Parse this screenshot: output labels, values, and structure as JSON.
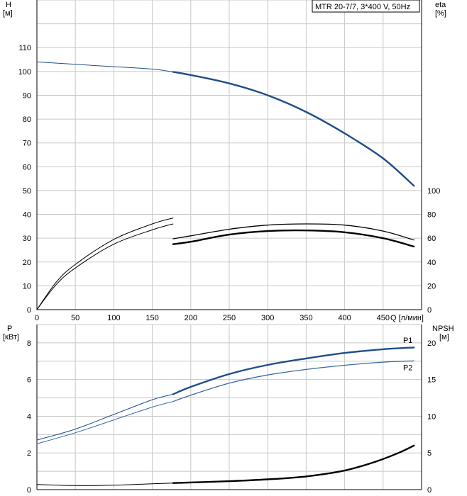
{
  "legend_text": "MTR 20-7/7, 3*400 V, 50Hz",
  "colors": {
    "blue": "#1f4e86",
    "blue_light": "#3a6aa8",
    "black": "#000000",
    "grid": "#c8c8c8"
  },
  "chart_data": [
    {
      "type": "line",
      "axes": {
        "x": {
          "label": "Q [л/мин]",
          "range": [
            0,
            500
          ],
          "ticks": [
            "0",
            "50",
            "100",
            "150",
            "200",
            "250",
            "300",
            "350",
            "400",
            "450"
          ]
        },
        "y_left": {
          "label_line1": "H",
          "label_line2": "[м]",
          "range": [
            0,
            130
          ],
          "ticks": [
            "0",
            "10",
            "20",
            "30",
            "40",
            "50",
            "60",
            "70",
            "80",
            "90",
            "100",
            "110"
          ]
        },
        "y_right": {
          "label_line1": "eta",
          "label_line2": "[%]",
          "range": [
            0,
            130
          ],
          "ticks": [
            "0",
            "20",
            "40",
            "60",
            "80",
            "100"
          ],
          "value_scale": 0.5
        }
      },
      "grid": true,
      "series": [
        {
          "axis": "left",
          "color": "#1f4e86",
          "width": 1,
          "x": [
            0,
            50,
            100,
            150,
            177
          ],
          "y": [
            104,
            103,
            102,
            101,
            99.8
          ]
        },
        {
          "axis": "left",
          "color": "#1f4e86",
          "width": 2.4,
          "x": [
            177,
            200,
            250,
            300,
            350,
            400,
            450,
            490
          ],
          "y": [
            99.8,
            98.5,
            95,
            90,
            83,
            74,
            63.5,
            52
          ]
        },
        {
          "axis": "right",
          "color": "#000000",
          "width": 1,
          "x": [
            0,
            25,
            50,
            100,
            150,
            177
          ],
          "y": [
            0,
            23,
            38,
            59,
            72,
            77
          ]
        },
        {
          "axis": "right",
          "color": "#000000",
          "width": 1,
          "x": [
            0,
            25,
            50,
            100,
            150,
            177
          ],
          "y": [
            0,
            21,
            35,
            55,
            67,
            72
          ]
        },
        {
          "axis": "right",
          "color": "#000000",
          "width": 1.3,
          "x": [
            177,
            200,
            250,
            300,
            350,
            400,
            450,
            490
          ],
          "y": [
            59.5,
            62,
            67.5,
            71,
            72,
            71,
            66,
            58.5
          ]
        },
        {
          "axis": "right",
          "color": "#000000",
          "width": 2.4,
          "x": [
            177,
            200,
            250,
            300,
            350,
            400,
            450,
            490
          ],
          "y": [
            55,
            57,
            63,
            66,
            66.5,
            65,
            60,
            53
          ]
        }
      ]
    },
    {
      "type": "line",
      "axes": {
        "x": {
          "range": [
            0,
            500
          ]
        },
        "y_left": {
          "label_line1": "P",
          "label_line2": "[кВт]",
          "range": [
            0,
            9
          ],
          "ticks": [
            "0",
            "2",
            "4",
            "6",
            "8"
          ]
        },
        "y_right": {
          "label_line1": "NPSH",
          "label_line2": "[м]",
          "range": [
            0,
            22.5
          ],
          "ticks": [
            "0",
            "5",
            "10",
            "15",
            "20"
          ]
        }
      },
      "grid": true,
      "series": [
        {
          "name": "P1",
          "axis": "left",
          "color": "#1f4e86",
          "width": 1,
          "x": [
            0,
            50,
            100,
            150,
            177
          ],
          "y": [
            2.7,
            3.3,
            4.1,
            4.9,
            5.2
          ]
        },
        {
          "name": "P1",
          "axis": "left",
          "color": "#1f4e86",
          "width": 2.4,
          "x": [
            177,
            200,
            250,
            300,
            350,
            400,
            450,
            490
          ],
          "y": [
            5.2,
            5.6,
            6.3,
            6.8,
            7.15,
            7.45,
            7.65,
            7.75
          ]
        },
        {
          "name": "P2",
          "axis": "left",
          "color": "#3a6aa8",
          "width": 1,
          "x": [
            0,
            50,
            100,
            150,
            177
          ],
          "y": [
            2.5,
            3.1,
            3.8,
            4.5,
            4.8
          ]
        },
        {
          "name": "P2",
          "axis": "left",
          "color": "#3a6aa8",
          "width": 1.3,
          "x": [
            177,
            200,
            250,
            300,
            350,
            400,
            450,
            490
          ],
          "y": [
            4.8,
            5.15,
            5.8,
            6.25,
            6.55,
            6.78,
            6.95,
            7.02
          ]
        },
        {
          "axis": "right",
          "color": "#000000",
          "width": 1,
          "x": [
            0,
            50,
            100,
            150,
            177
          ],
          "y": [
            0.7,
            0.55,
            0.6,
            0.8,
            0.9
          ]
        },
        {
          "axis": "right",
          "color": "#000000",
          "width": 2.4,
          "x": [
            177,
            250,
            300,
            350,
            400,
            440,
            470,
            490
          ],
          "y": [
            0.9,
            1.15,
            1.4,
            1.8,
            2.6,
            3.8,
            5.0,
            6.0
          ]
        }
      ],
      "labels": [
        "P1",
        "P2"
      ]
    }
  ]
}
